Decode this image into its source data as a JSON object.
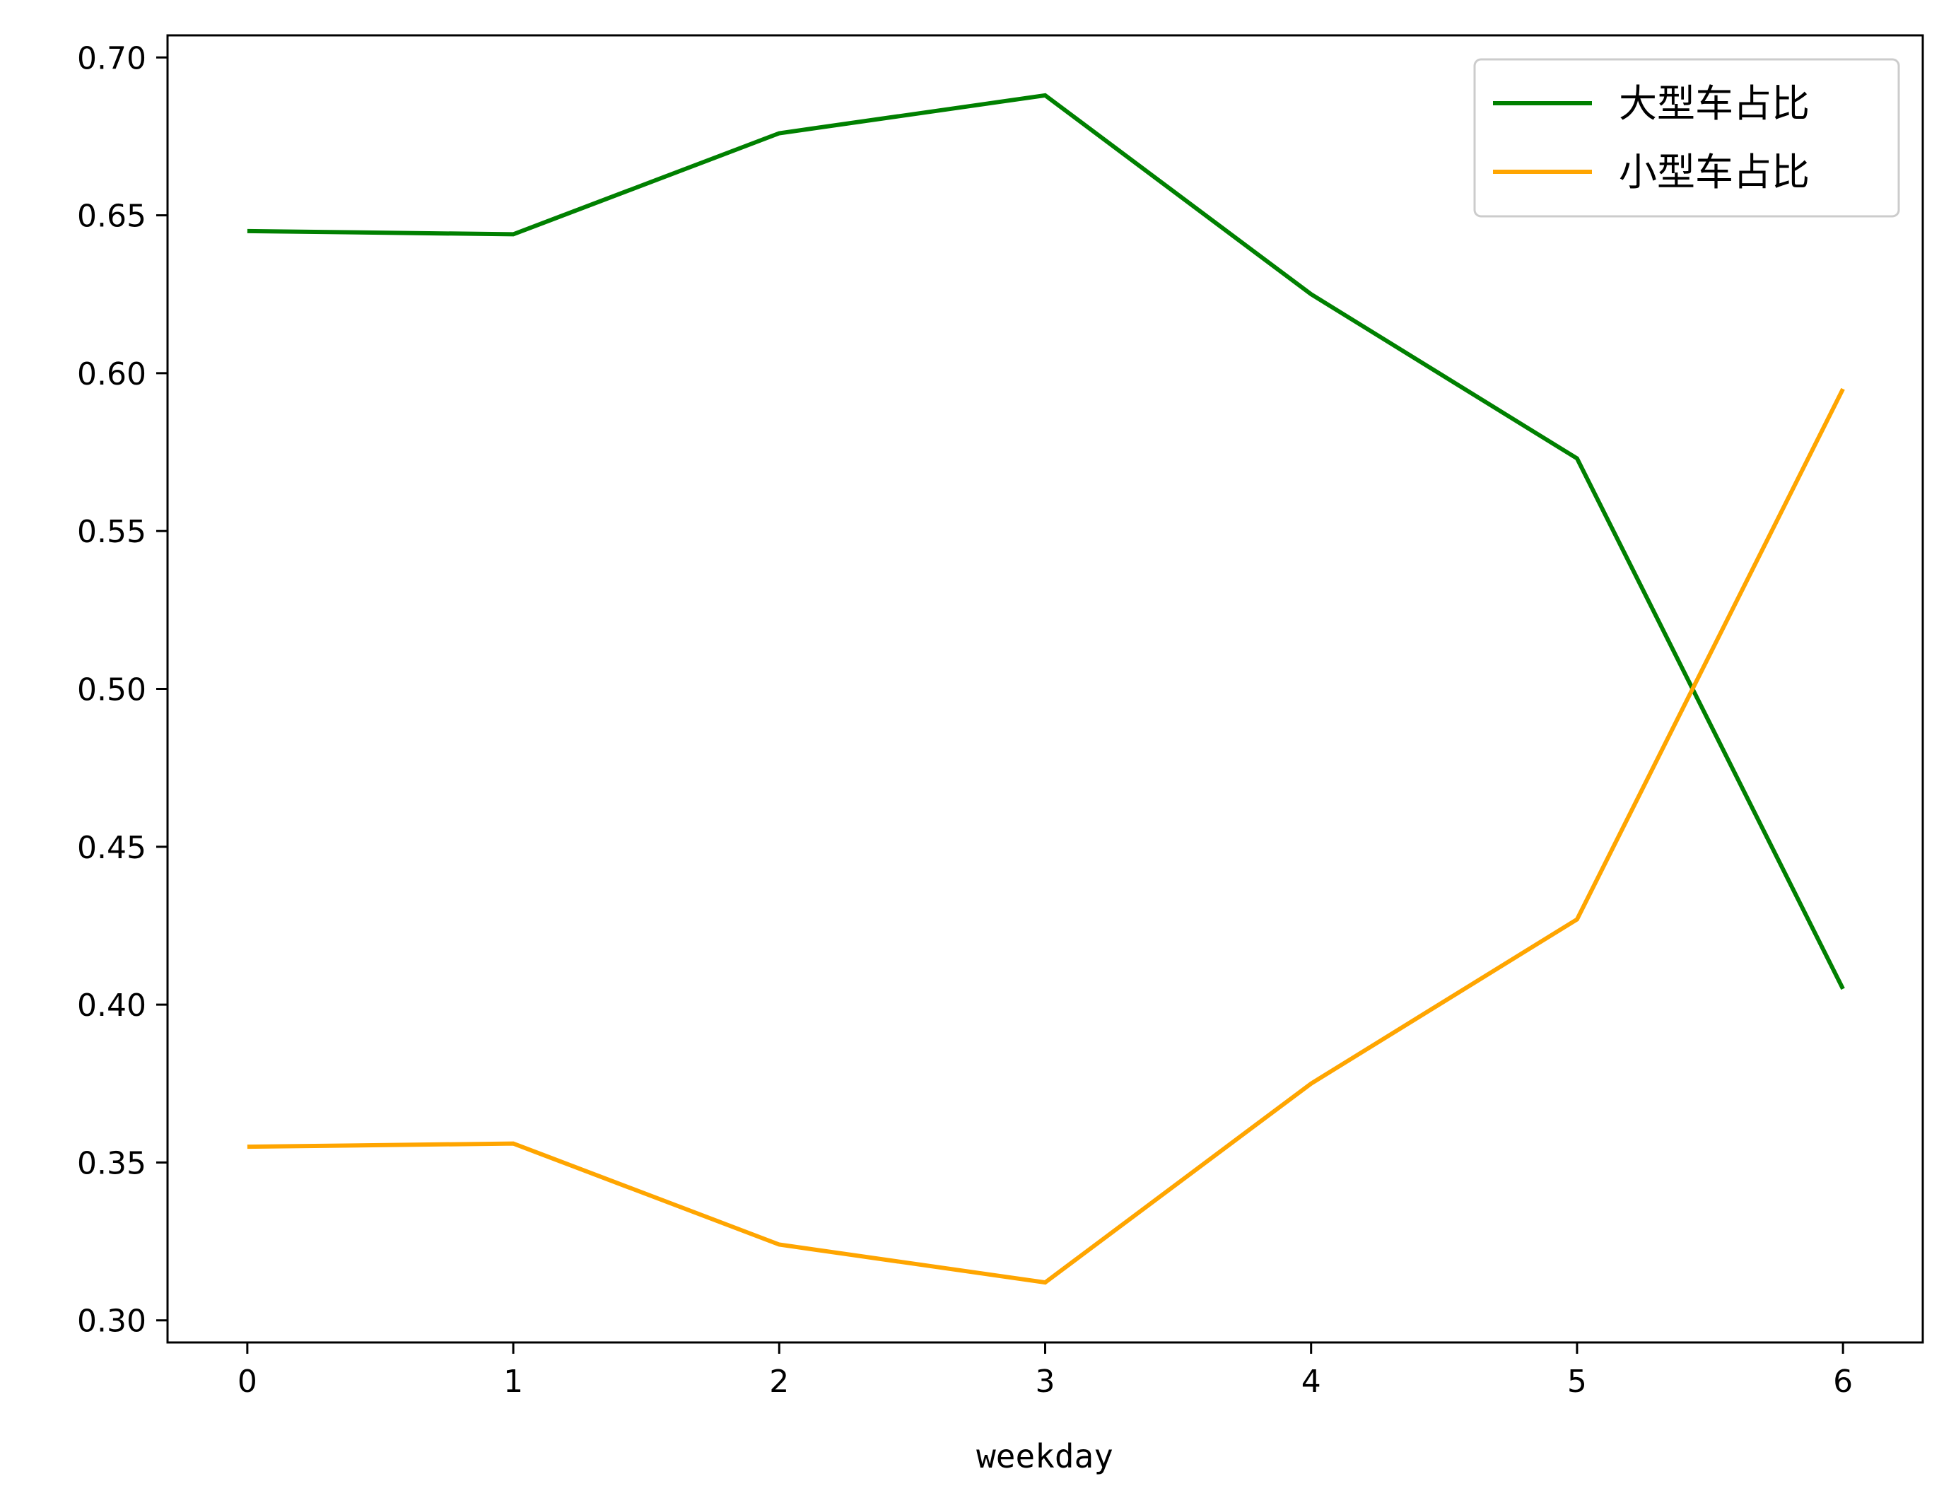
{
  "chart_data": {
    "type": "line",
    "title": "",
    "xlabel": "weekday",
    "ylabel": "",
    "x": [
      0,
      1,
      2,
      3,
      4,
      5,
      6
    ],
    "xlim": [
      -0.3,
      6.3
    ],
    "ylim": [
      0.293,
      0.707
    ],
    "xticks": [
      0,
      1,
      2,
      3,
      4,
      5,
      6
    ],
    "yticks": [
      0.3,
      0.35,
      0.4,
      0.45,
      0.5,
      0.55,
      0.6,
      0.65,
      0.7
    ],
    "xtick_labels": [
      "0",
      "1",
      "2",
      "3",
      "4",
      "5",
      "6"
    ],
    "ytick_labels": [
      "0.30",
      "0.35",
      "0.40",
      "0.45",
      "0.50",
      "0.55",
      "0.60",
      "0.65",
      "0.70"
    ],
    "grid": false,
    "legend_position": "top-right",
    "series": [
      {
        "name": "大型车占比",
        "color": "#008000",
        "values": [
          0.645,
          0.644,
          0.676,
          0.688,
          0.625,
          0.573,
          0.405
        ]
      },
      {
        "name": "小型车占比",
        "color": "#ffa500",
        "values": [
          0.355,
          0.356,
          0.324,
          0.312,
          0.375,
          0.427,
          0.595
        ]
      }
    ]
  }
}
